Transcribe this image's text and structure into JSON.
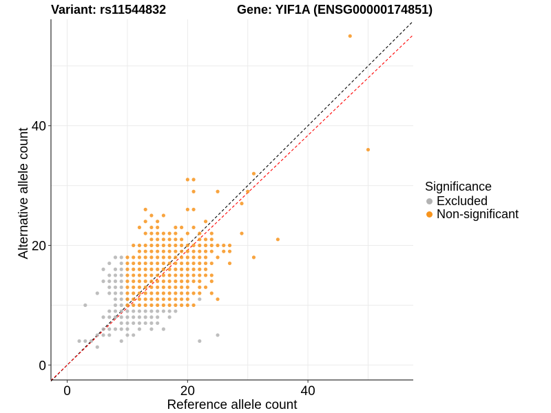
{
  "titles": {
    "variant": "Variant: rs11544832",
    "gene": "Gene: YIF1A (ENSG00000174851)"
  },
  "legend": {
    "title": "Significance",
    "items": [
      {
        "label": "Excluded",
        "color": "#b3b3b3"
      },
      {
        "label": "Non-significant",
        "color": "#f7941d"
      }
    ]
  },
  "chart_data": {
    "type": "scatter",
    "xlabel": "Reference allele count",
    "ylabel": "Alternative allele count",
    "xlim": [
      -2.7,
      57.5
    ],
    "ylim": [
      -2.5,
      57.8
    ],
    "xticks": [
      0,
      20,
      40
    ],
    "yticks": [
      0,
      20,
      40
    ],
    "grid": true,
    "legend_position": "right",
    "reference_lines": [
      {
        "name": "identity",
        "slope": 1,
        "intercept": 0,
        "color": "#000000",
        "dash": true
      },
      {
        "name": "fit",
        "slope": 0.96,
        "intercept": 0,
        "color": "#ff0000",
        "dash": true
      }
    ],
    "series": [
      {
        "name": "Excluded",
        "color": "#b3b3b3",
        "points": [
          [
            2,
            4
          ],
          [
            3,
            4
          ],
          [
            3,
            10
          ],
          [
            4,
            4
          ],
          [
            5,
            3
          ],
          [
            5,
            5
          ],
          [
            5,
            12
          ],
          [
            6,
            5
          ],
          [
            6,
            6
          ],
          [
            6,
            8
          ],
          [
            6,
            14
          ],
          [
            6,
            16
          ],
          [
            7,
            5
          ],
          [
            7,
            6
          ],
          [
            7,
            8
          ],
          [
            7,
            9
          ],
          [
            7,
            12
          ],
          [
            7,
            13
          ],
          [
            7,
            14
          ],
          [
            7,
            15
          ],
          [
            7,
            17
          ],
          [
            8,
            6
          ],
          [
            8,
            8
          ],
          [
            8,
            9
          ],
          [
            8,
            10
          ],
          [
            8,
            11
          ],
          [
            8,
            12
          ],
          [
            8,
            13
          ],
          [
            8,
            14
          ],
          [
            8,
            15
          ],
          [
            8,
            16
          ],
          [
            8,
            18
          ],
          [
            9,
            4
          ],
          [
            9,
            6
          ],
          [
            9,
            7
          ],
          [
            9,
            8
          ],
          [
            9,
            9
          ],
          [
            9,
            10
          ],
          [
            9,
            11
          ],
          [
            9,
            12
          ],
          [
            9,
            13
          ],
          [
            9,
            14
          ],
          [
            9,
            15
          ],
          [
            9,
            16
          ],
          [
            9,
            17
          ],
          [
            9,
            18
          ],
          [
            10,
            5
          ],
          [
            10,
            6
          ],
          [
            10,
            7
          ],
          [
            10,
            8
          ],
          [
            10,
            9
          ],
          [
            10,
            10
          ],
          [
            10,
            11
          ],
          [
            11,
            5
          ],
          [
            11,
            7
          ],
          [
            11,
            8
          ],
          [
            11,
            9
          ],
          [
            12,
            6
          ],
          [
            12,
            7
          ],
          [
            12,
            8
          ],
          [
            12,
            9
          ],
          [
            13,
            7
          ],
          [
            13,
            8
          ],
          [
            13,
            9
          ],
          [
            14,
            6
          ],
          [
            14,
            7
          ],
          [
            14,
            8
          ],
          [
            14,
            9
          ],
          [
            15,
            7
          ],
          [
            15,
            8
          ],
          [
            15,
            9
          ],
          [
            16,
            6
          ],
          [
            16,
            9
          ],
          [
            17,
            8
          ],
          [
            17,
            9
          ],
          [
            18,
            9
          ],
          [
            22,
            4
          ],
          [
            22,
            11
          ],
          [
            25,
            5
          ]
        ]
      },
      {
        "name": "Non-significant",
        "color": "#f7941d",
        "points": [
          [
            10,
            10
          ],
          [
            10,
            11
          ],
          [
            10,
            12
          ],
          [
            10,
            13
          ],
          [
            10,
            14
          ],
          [
            10,
            15
          ],
          [
            10,
            16
          ],
          [
            10,
            17
          ],
          [
            10,
            18
          ],
          [
            11,
            10
          ],
          [
            11,
            11
          ],
          [
            11,
            12
          ],
          [
            11,
            13
          ],
          [
            11,
            14
          ],
          [
            11,
            15
          ],
          [
            11,
            16
          ],
          [
            11,
            17
          ],
          [
            11,
            18
          ],
          [
            11,
            20
          ],
          [
            12,
            10
          ],
          [
            12,
            11
          ],
          [
            12,
            12
          ],
          [
            12,
            13
          ],
          [
            12,
            14
          ],
          [
            12,
            15
          ],
          [
            12,
            16
          ],
          [
            12,
            17
          ],
          [
            12,
            18
          ],
          [
            12,
            19
          ],
          [
            12,
            20
          ],
          [
            12,
            23
          ],
          [
            13,
            10
          ],
          [
            13,
            11
          ],
          [
            13,
            12
          ],
          [
            13,
            13
          ],
          [
            13,
            14
          ],
          [
            13,
            15
          ],
          [
            13,
            16
          ],
          [
            13,
            17
          ],
          [
            13,
            18
          ],
          [
            13,
            19
          ],
          [
            13,
            20
          ],
          [
            13,
            22
          ],
          [
            13,
            24
          ],
          [
            13,
            26
          ],
          [
            14,
            10
          ],
          [
            14,
            11
          ],
          [
            14,
            12
          ],
          [
            14,
            13
          ],
          [
            14,
            14
          ],
          [
            14,
            15
          ],
          [
            14,
            16
          ],
          [
            14,
            17
          ],
          [
            14,
            18
          ],
          [
            14,
            19
          ],
          [
            14,
            20
          ],
          [
            14,
            21
          ],
          [
            14,
            22
          ],
          [
            14,
            23
          ],
          [
            14,
            25
          ],
          [
            15,
            10
          ],
          [
            15,
            11
          ],
          [
            15,
            12
          ],
          [
            15,
            13
          ],
          [
            15,
            14
          ],
          [
            15,
            15
          ],
          [
            15,
            16
          ],
          [
            15,
            17
          ],
          [
            15,
            18
          ],
          [
            15,
            19
          ],
          [
            15,
            20
          ],
          [
            15,
            21
          ],
          [
            15,
            22
          ],
          [
            15,
            23
          ],
          [
            15,
            24
          ],
          [
            16,
            10
          ],
          [
            16,
            11
          ],
          [
            16,
            12
          ],
          [
            16,
            13
          ],
          [
            16,
            14
          ],
          [
            16,
            15
          ],
          [
            16,
            16
          ],
          [
            16,
            17
          ],
          [
            16,
            18
          ],
          [
            16,
            19
          ],
          [
            16,
            20
          ],
          [
            16,
            21
          ],
          [
            16,
            22
          ],
          [
            16,
            25
          ],
          [
            17,
            10
          ],
          [
            17,
            11
          ],
          [
            17,
            12
          ],
          [
            17,
            13
          ],
          [
            17,
            14
          ],
          [
            17,
            15
          ],
          [
            17,
            16
          ],
          [
            17,
            17
          ],
          [
            17,
            18
          ],
          [
            17,
            19
          ],
          [
            17,
            20
          ],
          [
            17,
            21
          ],
          [
            17,
            22
          ],
          [
            18,
            10
          ],
          [
            18,
            11
          ],
          [
            18,
            12
          ],
          [
            18,
            13
          ],
          [
            18,
            14
          ],
          [
            18,
            15
          ],
          [
            18,
            16
          ],
          [
            18,
            17
          ],
          [
            18,
            18
          ],
          [
            18,
            19
          ],
          [
            18,
            20
          ],
          [
            18,
            21
          ],
          [
            18,
            22
          ],
          [
            18,
            23
          ],
          [
            19,
            10
          ],
          [
            19,
            11
          ],
          [
            19,
            12
          ],
          [
            19,
            13
          ],
          [
            19,
            14
          ],
          [
            19,
            15
          ],
          [
            19,
            16
          ],
          [
            19,
            17
          ],
          [
            19,
            18
          ],
          [
            19,
            19
          ],
          [
            19,
            20
          ],
          [
            19,
            21
          ],
          [
            19,
            23
          ],
          [
            20,
            10
          ],
          [
            20,
            11
          ],
          [
            20,
            12
          ],
          [
            20,
            13
          ],
          [
            20,
            14
          ],
          [
            20,
            15
          ],
          [
            20,
            16
          ],
          [
            20,
            17
          ],
          [
            20,
            18
          ],
          [
            20,
            19
          ],
          [
            20,
            20
          ],
          [
            20,
            22
          ],
          [
            20,
            26
          ],
          [
            20,
            31
          ],
          [
            21,
            10
          ],
          [
            21,
            12
          ],
          [
            21,
            14
          ],
          [
            21,
            15
          ],
          [
            21,
            16
          ],
          [
            21,
            17
          ],
          [
            21,
            18
          ],
          [
            21,
            19
          ],
          [
            21,
            20
          ],
          [
            21,
            23
          ],
          [
            21,
            26
          ],
          [
            21,
            29
          ],
          [
            21,
            31
          ],
          [
            22,
            12
          ],
          [
            22,
            13
          ],
          [
            22,
            14
          ],
          [
            22,
            15
          ],
          [
            22,
            16
          ],
          [
            22,
            17
          ],
          [
            22,
            18
          ],
          [
            22,
            19
          ],
          [
            22,
            20
          ],
          [
            22,
            21
          ],
          [
            22,
            22
          ],
          [
            23,
            13
          ],
          [
            23,
            15
          ],
          [
            23,
            16
          ],
          [
            23,
            17
          ],
          [
            23,
            18
          ],
          [
            23,
            19
          ],
          [
            23,
            20
          ],
          [
            23,
            21
          ],
          [
            23,
            24
          ],
          [
            24,
            12
          ],
          [
            24,
            14
          ],
          [
            24,
            15
          ],
          [
            24,
            17
          ],
          [
            24,
            19
          ],
          [
            24,
            20
          ],
          [
            24,
            21
          ],
          [
            24,
            22
          ],
          [
            25,
            11
          ],
          [
            25,
            18
          ],
          [
            25,
            20
          ],
          [
            25,
            29
          ],
          [
            26,
            19
          ],
          [
            26,
            20
          ],
          [
            27,
            17
          ],
          [
            27,
            19
          ],
          [
            27,
            20
          ],
          [
            29,
            22
          ],
          [
            29,
            27
          ],
          [
            30,
            29
          ],
          [
            31,
            18
          ],
          [
            31,
            32
          ],
          [
            35,
            21
          ],
          [
            47,
            55
          ],
          [
            50,
            36
          ]
        ]
      }
    ]
  }
}
